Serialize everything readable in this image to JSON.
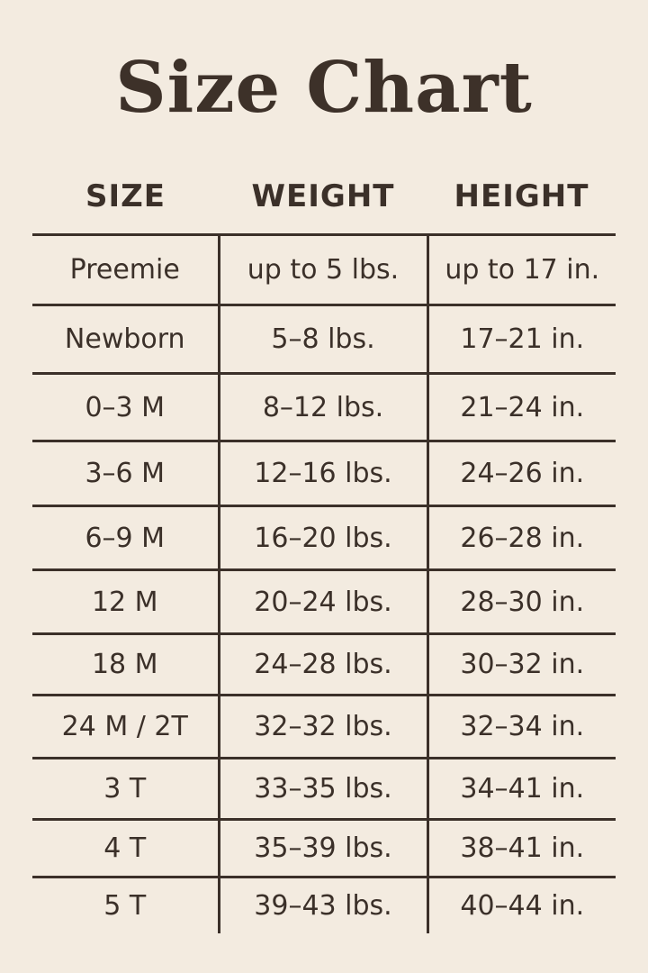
{
  "title": "Size Chart",
  "headers": [
    "SIZE",
    "WEIGHT",
    "HEIGHT"
  ],
  "rows": [
    {
      "size": "Preemie",
      "weight": "up to 5 lbs.",
      "height": "up to 17 in."
    },
    {
      "size": "Newborn",
      "weight": "5–8 lbs.",
      "height": "17–21 in."
    },
    {
      "size": "0–3 M",
      "weight": "8–12 lbs.",
      "height": "21–24 in."
    },
    {
      "size": "3–6 M",
      "weight": "12–16 lbs.",
      "height": "24–26 in."
    },
    {
      "size": "6–9 M",
      "weight": "16–20 lbs.",
      "height": "26–28 in."
    },
    {
      "size": "12 M",
      "weight": "20–24 lbs.",
      "height": "28–30 in."
    },
    {
      "size": "18 M",
      "weight": "24–28 lbs.",
      "height": "30–32 in."
    },
    {
      "size": "24 M / 2T",
      "weight": "32–32 lbs.",
      "height": "32–34 in."
    },
    {
      "size": "3 T",
      "weight": "33–35 lbs.",
      "height": "34–41 in."
    },
    {
      "size": "4 T",
      "weight": "35–39 lbs.",
      "height": "38–41 in."
    },
    {
      "size": "5 T",
      "weight": "39–43 lbs.",
      "height": "40–44 in."
    }
  ],
  "colors": {
    "background": "#f3ebe0",
    "text": "#3b3029"
  }
}
